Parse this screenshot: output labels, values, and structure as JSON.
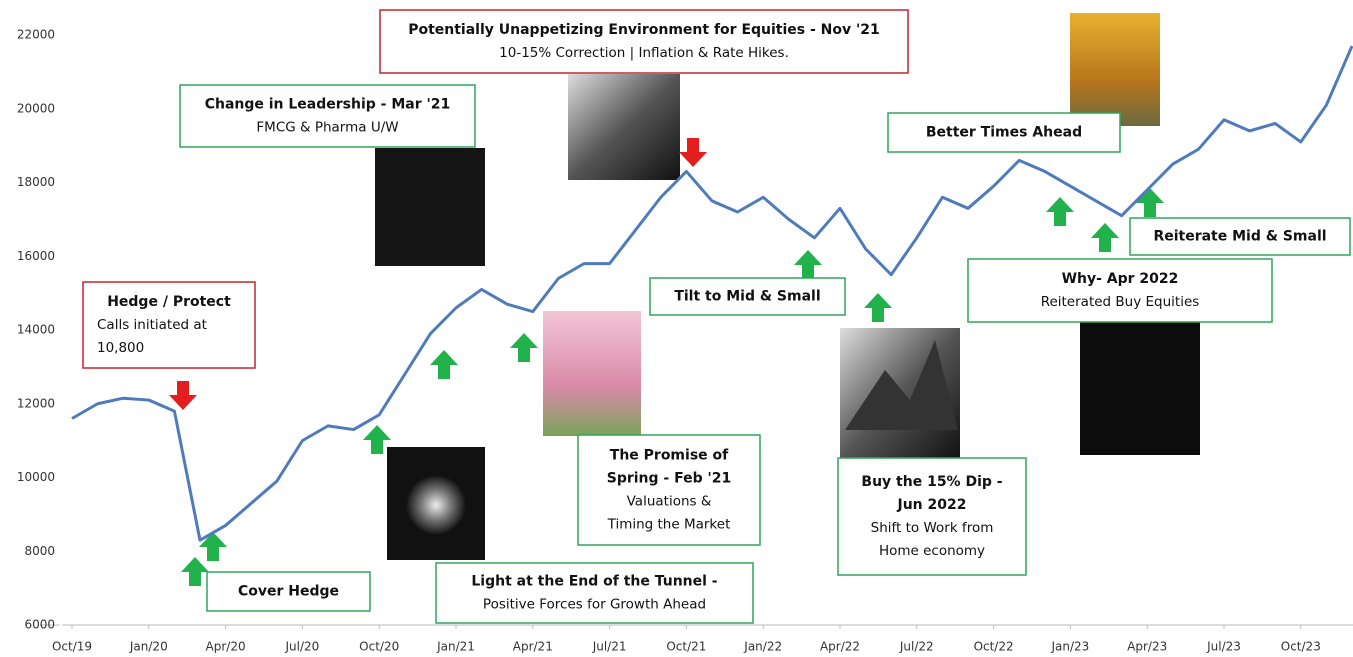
{
  "chart_data": {
    "type": "line",
    "color": "#4f7bbd",
    "categories": [
      "Oct/19",
      null,
      null,
      "Jan/20",
      null,
      null,
      "Apr/20",
      null,
      null,
      "Jul/20",
      null,
      null,
      "Oct/20",
      null,
      null,
      "Jan/21",
      null,
      null,
      "Apr/21",
      null,
      null,
      "Jul/21",
      null,
      null,
      "Oct/21",
      null,
      null,
      "Jan/22",
      null,
      null,
      "Apr/22",
      null,
      null,
      "Jul/22",
      null,
      null,
      "Oct/22",
      null,
      null,
      "Jan/23",
      null,
      null,
      "Apr/23",
      null,
      null,
      "Jul/23",
      null,
      null,
      "Oct/23",
      null,
      null
    ],
    "values": [
      11600,
      12000,
      12150,
      12100,
      11800,
      8300,
      8700,
      9300,
      9900,
      11000,
      11400,
      11300,
      11700,
      12800,
      13900,
      14600,
      15100,
      14700,
      14500,
      15400,
      15800,
      15800,
      16700,
      17600,
      18300,
      17500,
      17200,
      17600,
      17000,
      16500,
      17300,
      16200,
      15500,
      16500,
      17600,
      17300,
      17900,
      18600,
      18300,
      17900,
      17500,
      17100,
      17800,
      18500,
      18900,
      19700,
      19400,
      19600,
      19100,
      20100,
      21700
    ],
    "ylim": [
      6000,
      22000
    ],
    "yticks": [
      6000,
      8000,
      10000,
      12000,
      14000,
      16000,
      18000,
      20000,
      22000
    ],
    "annotations": [
      {
        "heading": [
          "Potentially Unappetizing Environment for Equities - Nov '21"
        ],
        "body": [
          "10-15% Correction | Inflation & Rate Hikes."
        ],
        "color": "#c0272d"
      },
      {
        "heading": [
          "Change in Leadership - Mar '21"
        ],
        "body": [
          "FMCG & Pharma U/W"
        ],
        "color": "#2ea65a"
      },
      {
        "heading": [
          "Hedge / Protect"
        ],
        "body": [
          "Calls initiated at",
          "10,800"
        ],
        "color": "#c0272d"
      },
      {
        "heading": [
          "Cover Hedge"
        ],
        "body": [],
        "color": "#2ea65a"
      },
      {
        "heading": [
          "Light at the End of the Tunnel -"
        ],
        "body": [
          "Positive Forces for Growth Ahead"
        ],
        "color": "#2ea65a"
      },
      {
        "heading": [
          "The Promise of",
          "Spring - Feb '21"
        ],
        "body": [
          "Valuations &",
          "Timing the Market"
        ],
        "color": "#2ea65a"
      },
      {
        "heading": [
          "Tilt to Mid & Small"
        ],
        "body": [],
        "color": "#2ea65a"
      },
      {
        "heading": [
          "Buy the 15% Dip -",
          "Jun 2022"
        ],
        "body": [
          "Shift to Work from",
          "Home economy"
        ],
        "color": "#2ea65a"
      },
      {
        "heading": [
          "Better Times Ahead"
        ],
        "body": [],
        "color": "#2ea65a"
      },
      {
        "heading": [
          "Why- Apr 2022"
        ],
        "body": [
          "Reiterated Buy Equities"
        ],
        "color": "#2ea65a"
      },
      {
        "heading": [
          "Reiterate Mid & Small"
        ],
        "body": [],
        "color": "#2ea65a"
      }
    ]
  }
}
